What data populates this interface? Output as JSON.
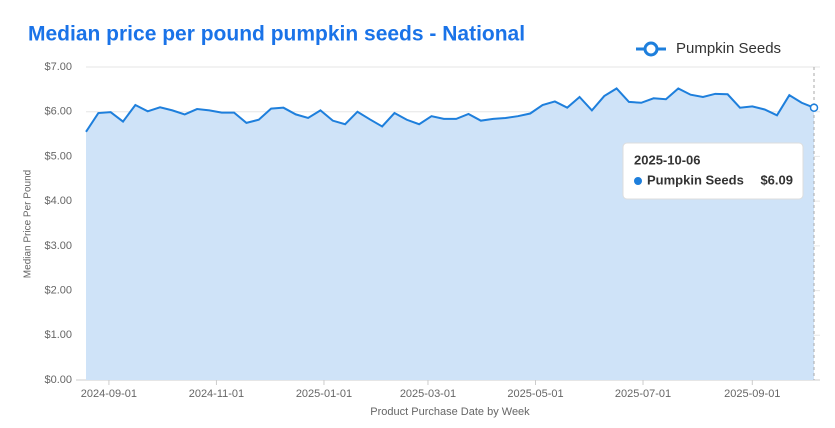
{
  "chart_data": {
    "type": "area",
    "title": "Median price per pound pumpkin seeds - National",
    "x_label": "Product Purchase Date by Week",
    "y_label": "Median Price Per Pound",
    "x": [
      "2024-08-19",
      "2024-08-26",
      "2024-09-02",
      "2024-09-09",
      "2024-09-16",
      "2024-09-23",
      "2024-09-30",
      "2024-10-07",
      "2024-10-14",
      "2024-10-21",
      "2024-10-28",
      "2024-11-04",
      "2024-11-11",
      "2024-11-18",
      "2024-11-25",
      "2024-12-02",
      "2024-12-09",
      "2024-12-16",
      "2024-12-23",
      "2024-12-30",
      "2025-01-06",
      "2025-01-13",
      "2025-01-20",
      "2025-01-27",
      "2025-02-03",
      "2025-02-10",
      "2025-02-17",
      "2025-02-24",
      "2025-03-03",
      "2025-03-10",
      "2025-03-17",
      "2025-03-24",
      "2025-03-31",
      "2025-04-07",
      "2025-04-14",
      "2025-04-21",
      "2025-04-28",
      "2025-05-05",
      "2025-05-12",
      "2025-05-19",
      "2025-05-26",
      "2025-06-02",
      "2025-06-09",
      "2025-06-16",
      "2025-06-23",
      "2025-06-30",
      "2025-07-07",
      "2025-07-14",
      "2025-07-21",
      "2025-07-28",
      "2025-08-04",
      "2025-08-11",
      "2025-08-18",
      "2025-08-25",
      "2025-09-01",
      "2025-09-08",
      "2025-09-15",
      "2025-09-22",
      "2025-09-29",
      "2025-10-06"
    ],
    "series": [
      {
        "name": "Pumpkin Seeds",
        "color": "#1e7fdc",
        "fill": "#cfe3f8",
        "values": [
          5.55,
          5.97,
          5.99,
          5.78,
          6.15,
          6.01,
          6.1,
          6.03,
          5.94,
          6.06,
          6.03,
          5.98,
          5.98,
          5.75,
          5.82,
          6.07,
          6.09,
          5.94,
          5.86,
          6.03,
          5.8,
          5.72,
          6.0,
          5.83,
          5.67,
          5.97,
          5.82,
          5.72,
          5.9,
          5.84,
          5.84,
          5.95,
          5.8,
          5.84,
          5.86,
          5.9,
          5.96,
          6.15,
          6.23,
          6.09,
          6.33,
          6.03,
          6.35,
          6.52,
          6.22,
          6.2,
          6.3,
          6.28,
          6.52,
          6.38,
          6.33,
          6.4,
          6.39,
          6.09,
          6.12,
          6.05,
          5.92,
          6.37,
          6.2,
          6.09
        ]
      }
    ],
    "xlim": [
      "2024-08-19",
      "2025-10-06"
    ],
    "xticks": [
      "2024-09-01",
      "2024-11-01",
      "2025-01-01",
      "2025-03-01",
      "2025-05-01",
      "2025-07-01",
      "2025-09-01"
    ],
    "ylim": [
      0,
      7
    ],
    "yticks": [
      {
        "value": 0,
        "label": "$0.00"
      },
      {
        "value": 1,
        "label": "$1.00"
      },
      {
        "value": 2,
        "label": "$2.00"
      },
      {
        "value": 3,
        "label": "$3.00"
      },
      {
        "value": 4,
        "label": "$4.00"
      },
      {
        "value": 5,
        "label": "$5.00"
      },
      {
        "value": 6,
        "label": "$6.00"
      },
      {
        "value": 7,
        "label": "$7.00"
      }
    ],
    "grid": true,
    "legend": "top-right",
    "tooltip": {
      "x": "2025-10-06",
      "series": "Pumpkin Seeds",
      "value": "$6.09"
    }
  }
}
